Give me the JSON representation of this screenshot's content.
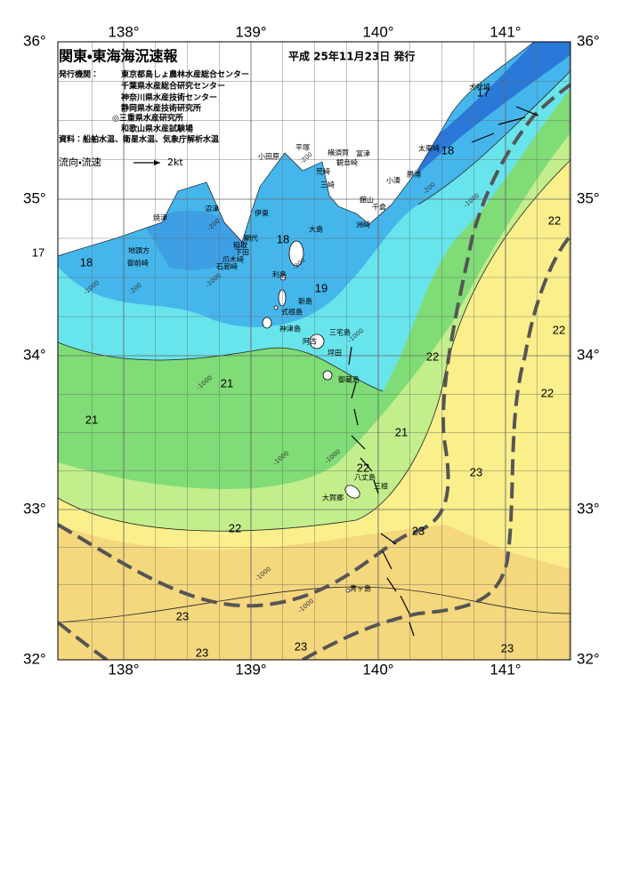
{
  "header": {
    "title": "関東・東海海況速報",
    "date": "平成 25年11月23日 発行",
    "issuers_label": "発行機関：",
    "issuers": [
      "東京都島しょ農林水産総合センター",
      "千葉県水産総合研究センター",
      "神奈川県水産技術センター",
      "静岡県水産技術研究所",
      "◎三重県水産研究所",
      "和歌山県水産試験場"
    ],
    "sources": "資料：船舶水温、衛星水温、気象庁解析水温",
    "legend": {
      "label": "流向・流速",
      "speed": "2kt"
    }
  },
  "map": {
    "lon_labels": [
      "138°",
      "139°",
      "140°",
      "141°"
    ],
    "lat_labels": [
      "36°",
      "35°",
      "34°",
      "33°",
      "32°"
    ],
    "place_names": [
      "犬吠埼",
      "太東崎",
      "勝浦",
      "小湊",
      "洲崎",
      "館山",
      "千倉",
      "富津",
      "観音崎",
      "横須賀",
      "平塚",
      "荒崎",
      "三崎",
      "小田原",
      "伊東",
      "沼津",
      "焼津",
      "網代",
      "稲取",
      "下田",
      "爪木崎",
      "石廊崎",
      "御前崎",
      "地頭方",
      "大島",
      "利島",
      "新島",
      "式根島",
      "神津島",
      "三宅島",
      "阿古",
      "坪田",
      "御蔵島",
      "八丈島",
      "大賀郷",
      "三根",
      "青ヶ島"
    ],
    "temperature_labels": [
      17,
      18,
      17,
      18,
      18,
      19,
      21,
      21,
      22,
      21,
      22,
      23,
      22,
      23,
      22,
      22,
      22,
      23,
      23,
      23,
      23
    ],
    "depth_labels": [
      "-200",
      "-200",
      "-200",
      "-200",
      "-200",
      "-1000",
      "-1000",
      "-1000",
      "-1000",
      "-1000",
      "-1000",
      "-1000",
      "-1000",
      "-1000"
    ]
  }
}
